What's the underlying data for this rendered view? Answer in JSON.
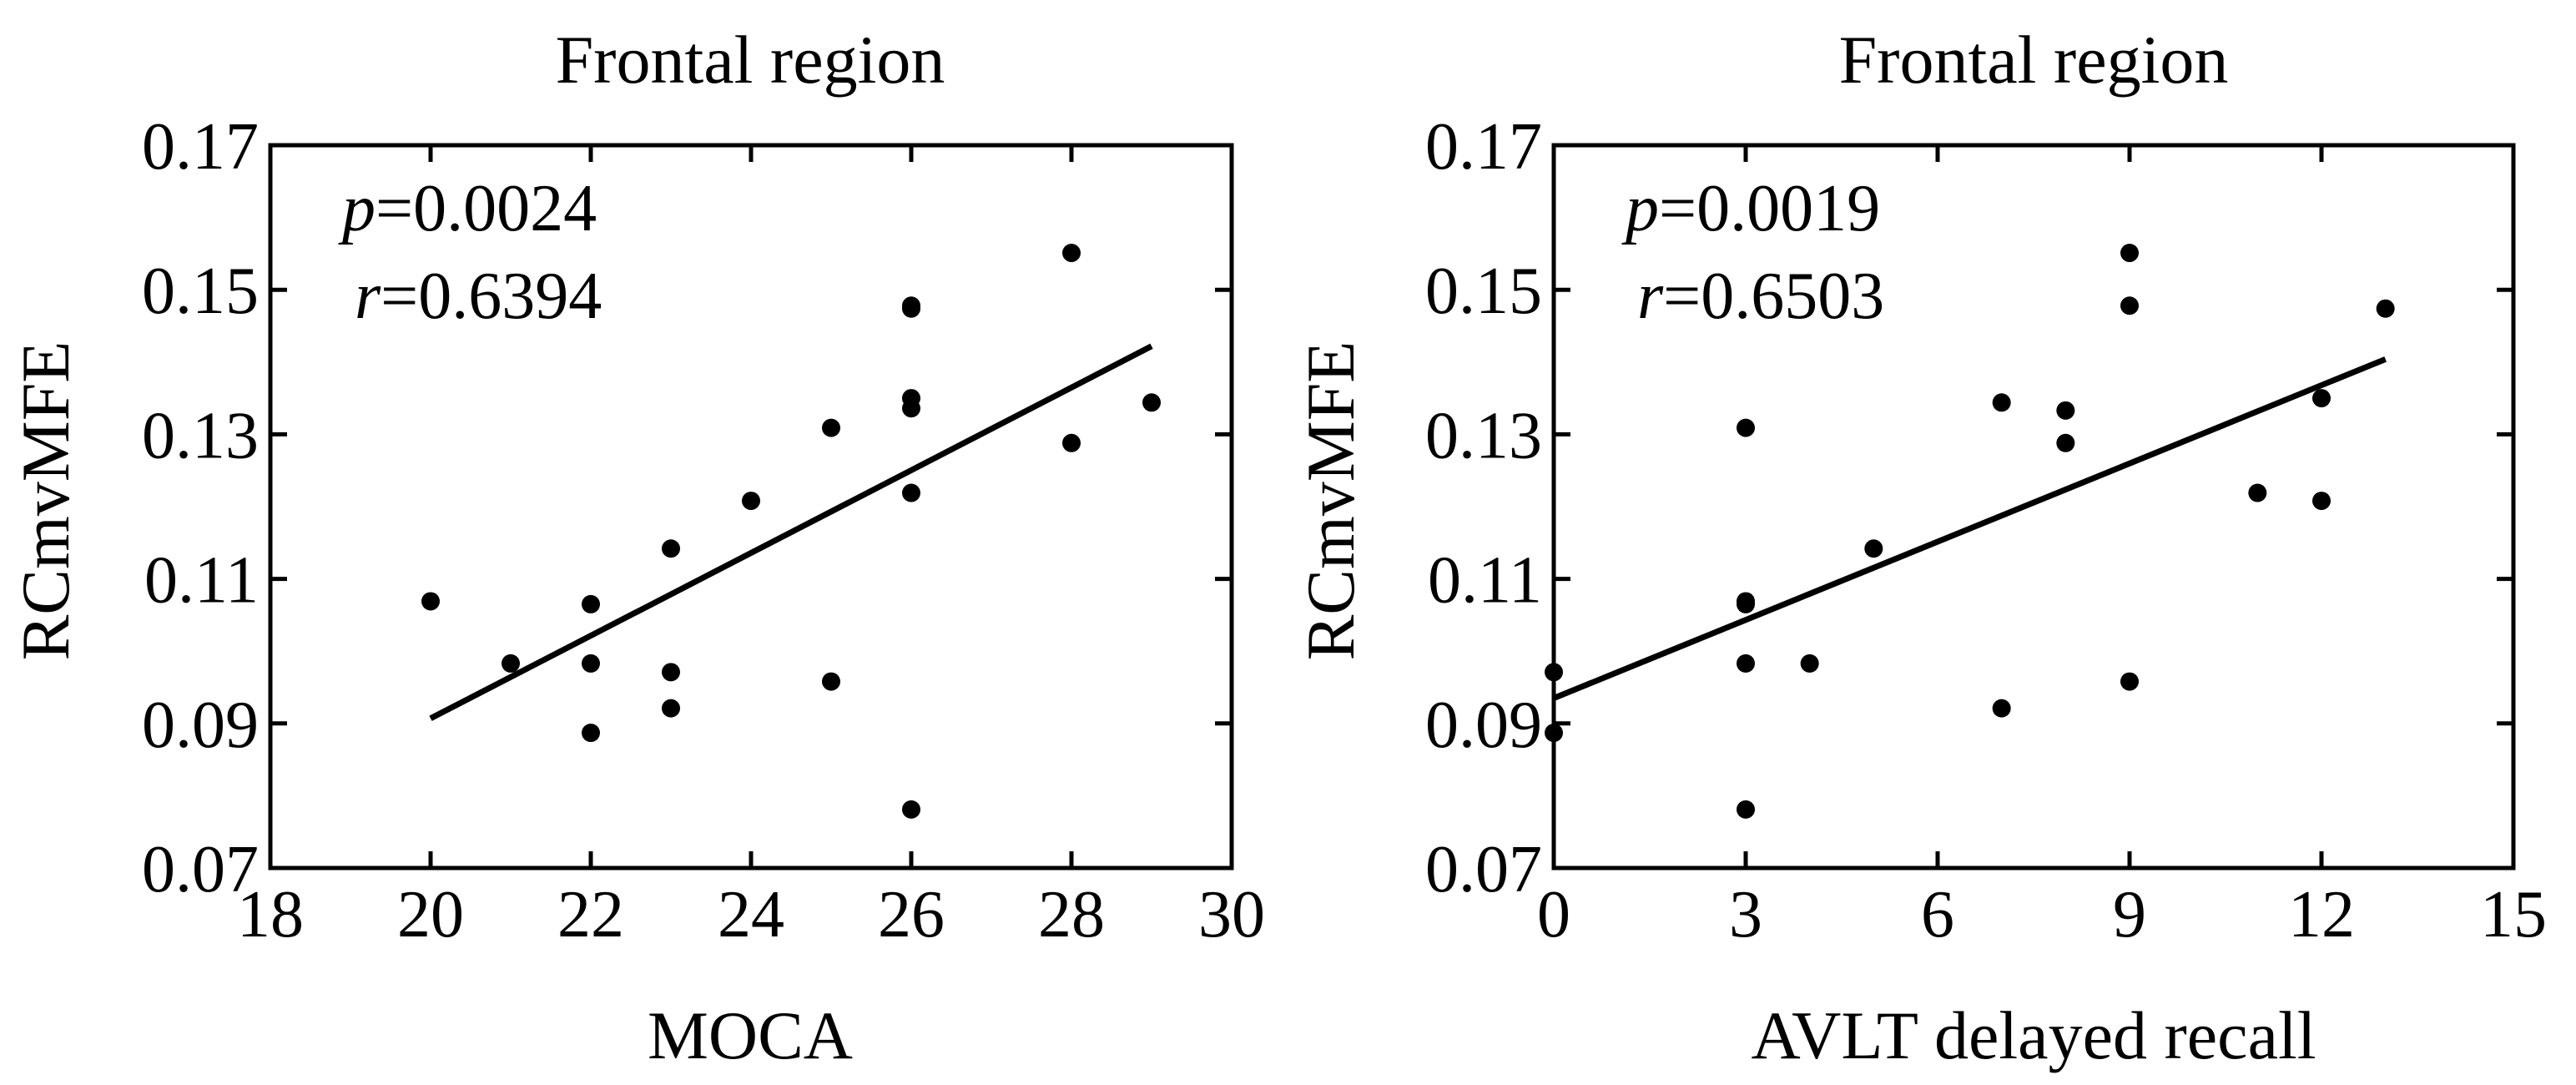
{
  "chart_data": [
    {
      "type": "scatter",
      "title": "Frontal region",
      "xlabel": "MOCA",
      "ylabel": "RCmvMFE",
      "xlim": [
        18,
        30
      ],
      "ylim": [
        0.07,
        0.17
      ],
      "xticks": [
        "18",
        "20",
        "22",
        "24",
        "26",
        "28",
        "30"
      ],
      "yticks": [
        "0.07",
        "0.09",
        "0.11",
        "0.13",
        "0.15",
        "0.17"
      ],
      "xtick_values": [
        18,
        20,
        22,
        24,
        26,
        28,
        30
      ],
      "ytick_values": [
        0.07,
        0.09,
        0.11,
        0.13,
        0.15,
        0.17
      ],
      "stats": {
        "p_symbol": "p",
        "p_value": "=0.0024",
        "r_symbol": "r",
        "r_value": "=0.6394"
      },
      "points": [
        {
          "x": 20,
          "y": 0.1069
        },
        {
          "x": 21,
          "y": 0.0983
        },
        {
          "x": 22,
          "y": 0.1065
        },
        {
          "x": 22,
          "y": 0.0983
        },
        {
          "x": 22,
          "y": 0.0887
        },
        {
          "x": 23,
          "y": 0.1142
        },
        {
          "x": 23,
          "y": 0.0971
        },
        {
          "x": 23,
          "y": 0.0921
        },
        {
          "x": 24,
          "y": 0.1208
        },
        {
          "x": 25,
          "y": 0.1309
        },
        {
          "x": 25,
          "y": 0.0958
        },
        {
          "x": 26,
          "y": 0.1478
        },
        {
          "x": 26,
          "y": 0.1474
        },
        {
          "x": 26,
          "y": 0.135
        },
        {
          "x": 26,
          "y": 0.1336
        },
        {
          "x": 26,
          "y": 0.1219
        },
        {
          "x": 26,
          "y": 0.0781
        },
        {
          "x": 28,
          "y": 0.1551
        },
        {
          "x": 28,
          "y": 0.1288
        },
        {
          "x": 29,
          "y": 0.1344
        }
      ],
      "fit_line": {
        "x": [
          20,
          29
        ],
        "y": [
          0.0907,
          0.1422
        ]
      }
    },
    {
      "type": "scatter",
      "title": "Frontal region",
      "xlabel": "AVLT delayed recall",
      "ylabel": "RCmvMFE",
      "xlim": [
        0,
        15
      ],
      "ylim": [
        0.07,
        0.17
      ],
      "xticks": [
        "0",
        "3",
        "6",
        "9",
        "12",
        "15"
      ],
      "yticks": [
        "0.07",
        "0.09",
        "0.11",
        "0.13",
        "0.15",
        "0.17"
      ],
      "xtick_values": [
        0,
        3,
        6,
        9,
        12,
        15
      ],
      "ytick_values": [
        0.07,
        0.09,
        0.11,
        0.13,
        0.15,
        0.17
      ],
      "stats": {
        "p_symbol": "p",
        "p_value": "=0.0019",
        "r_symbol": "r",
        "r_value": "=0.6503"
      },
      "points": [
        {
          "x": 0,
          "y": 0.0971
        },
        {
          "x": 0,
          "y": 0.0887
        },
        {
          "x": 3,
          "y": 0.1309
        },
        {
          "x": 3,
          "y": 0.1069
        },
        {
          "x": 3,
          "y": 0.1065
        },
        {
          "x": 3,
          "y": 0.0983
        },
        {
          "x": 3,
          "y": 0.0781
        },
        {
          "x": 4,
          "y": 0.0983
        },
        {
          "x": 5,
          "y": 0.1142
        },
        {
          "x": 7,
          "y": 0.1344
        },
        {
          "x": 7,
          "y": 0.0921
        },
        {
          "x": 8,
          "y": 0.1333
        },
        {
          "x": 8,
          "y": 0.1288
        },
        {
          "x": 9,
          "y": 0.1551
        },
        {
          "x": 9,
          "y": 0.1478
        },
        {
          "x": 9,
          "y": 0.0958
        },
        {
          "x": 11,
          "y": 0.1219
        },
        {
          "x": 12,
          "y": 0.135
        },
        {
          "x": 12,
          "y": 0.1208
        },
        {
          "x": 13,
          "y": 0.1474
        }
      ],
      "fit_line": {
        "x": [
          0,
          13
        ],
        "y": [
          0.0935,
          0.1404
        ]
      }
    }
  ]
}
